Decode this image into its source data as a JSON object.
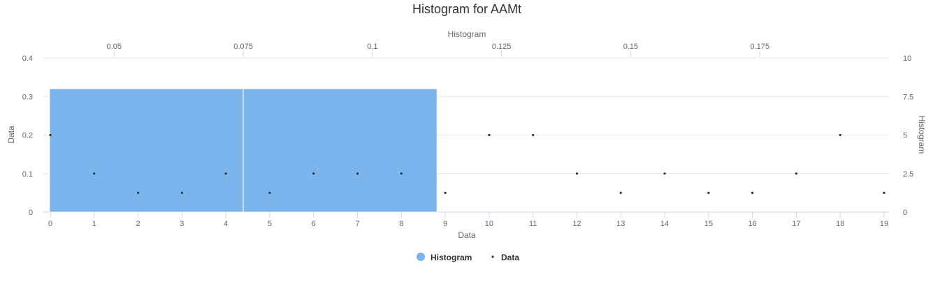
{
  "chart_data": {
    "type": "bar",
    "title": "Histogram for AAMt",
    "x_bottom": {
      "label": "Data",
      "range": [
        0,
        19
      ],
      "ticks": [
        0,
        1,
        2,
        3,
        4,
        5,
        6,
        7,
        8,
        9,
        10,
        11,
        12,
        13,
        14,
        15,
        16,
        17,
        18,
        19
      ]
    },
    "x_top": {
      "label": "Histogram",
      "range": [
        0.0363,
        0.2
      ],
      "ticks": [
        "0.05",
        "0.075",
        "0.1",
        "0.125",
        "0.15",
        "0.175"
      ]
    },
    "y_left": {
      "label": "Data",
      "range": [
        0,
        0.4
      ],
      "ticks": [
        "0",
        "0.1",
        "0.2",
        "0.3",
        "0.4"
      ]
    },
    "y_right": {
      "label": "Histogram",
      "range": [
        0,
        10
      ],
      "ticks": [
        "0",
        "2.5",
        "5",
        "7.5",
        "10"
      ]
    },
    "grid": true,
    "legend_position": "bottom-center",
    "series": [
      {
        "name": "Histogram",
        "kind": "histogram",
        "color": "#7cb5ec",
        "bins": [
          {
            "from": 0.0375,
            "to": 0.075,
            "count": 8
          },
          {
            "from": 0.075,
            "to": 0.1125,
            "count": 8
          }
        ]
      },
      {
        "name": "Data",
        "kind": "scatter",
        "color": "#333333",
        "x": [
          0,
          1,
          2,
          3,
          4,
          5,
          6,
          7,
          8,
          9,
          10,
          11,
          12,
          13,
          14,
          15,
          16,
          17,
          18,
          19
        ],
        "y": [
          0.2,
          0.1,
          0.05,
          0.05,
          0.1,
          0.05,
          0.1,
          0.1,
          0.1,
          0.05,
          0.2,
          0.2,
          0.1,
          0.05,
          0.1,
          0.05,
          0.05,
          0.1,
          0.2,
          0.05
        ]
      }
    ]
  }
}
